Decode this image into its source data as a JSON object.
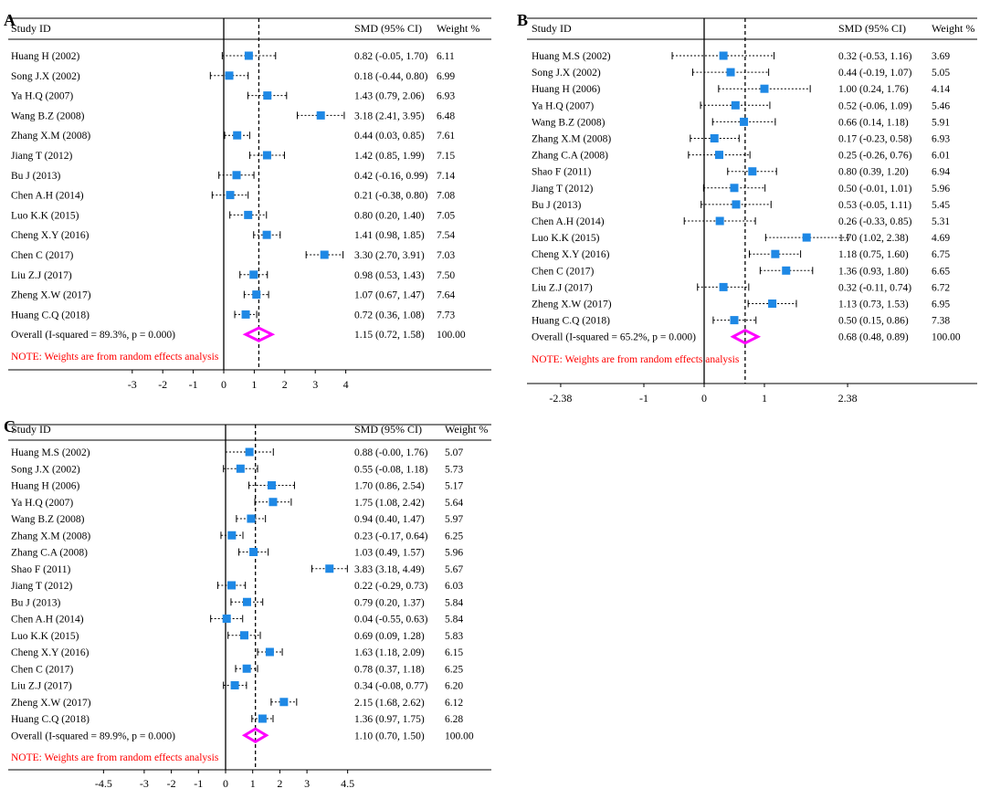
{
  "header": {
    "study": "Study ID",
    "smd": "SMD (95% CI)",
    "weight": "Weight %"
  },
  "colors": {
    "square": "#1E88E5",
    "diamond": "#FF00FF",
    "note": "#FF0000",
    "ink": "#000000"
  },
  "chart_data": [
    {
      "type": "forest",
      "panel": "A",
      "studies": [
        "Huang H (2002)",
        "Song J.X (2002)",
        "Ya H.Q (2007)",
        "Wang B.Z (2008)",
        "Zhang X.M (2008)",
        "Jiang T (2012)",
        "Bu J (2013)",
        "Chen A.H (2014)",
        "Luo K.K (2015)",
        "Cheng X.Y (2016)",
        "Chen C (2017)",
        "Liu Z.J (2017)",
        "Zheng X.W (2017)",
        "Huang C.Q (2018)"
      ],
      "smd": [
        0.82,
        0.18,
        1.43,
        3.18,
        0.44,
        1.42,
        0.42,
        0.21,
        0.8,
        1.41,
        3.3,
        0.98,
        1.07,
        0.72
      ],
      "lower": [
        -0.05,
        -0.44,
        0.79,
        2.41,
        0.03,
        0.85,
        -0.16,
        -0.38,
        0.2,
        0.98,
        2.7,
        0.53,
        0.67,
        0.36
      ],
      "upper": [
        1.7,
        0.8,
        2.06,
        3.95,
        0.85,
        1.99,
        0.99,
        0.8,
        1.4,
        1.85,
        3.91,
        1.43,
        1.47,
        1.08
      ],
      "ci_text": [
        "0.82 (-0.05, 1.70)",
        "0.18 (-0.44, 0.80)",
        "1.43 (0.79, 2.06)",
        "3.18 (2.41, 3.95)",
        "0.44 (0.03, 0.85)",
        "1.42 (0.85, 1.99)",
        "0.42 (-0.16, 0.99)",
        "0.21 (-0.38, 0.80)",
        "0.80 (0.20, 1.40)",
        "1.41 (0.98, 1.85)",
        "3.30 (2.70, 3.91)",
        "0.98 (0.53, 1.43)",
        "1.07 (0.67, 1.47)",
        "0.72 (0.36, 1.08)"
      ],
      "weights": [
        "6.11",
        "6.99",
        "6.93",
        "6.48",
        "7.61",
        "7.15",
        "7.14",
        "7.08",
        "7.05",
        "7.54",
        "7.03",
        "7.50",
        "7.64",
        "7.73"
      ],
      "overall": {
        "label": "Overall  (I-squared = 89.3%, p = 0.000)",
        "smd": 1.15,
        "lower": 0.72,
        "upper": 1.58,
        "ci_text": "1.15 (0.72, 1.58)",
        "weight": "100.00"
      },
      "note": "NOTE: Weights are from random effects analysis",
      "xticks": [
        -3,
        -2,
        -1,
        0,
        1,
        2,
        3,
        4
      ],
      "xtick_labels": [
        "-3",
        "-2",
        "-1",
        "0",
        "1",
        "2",
        "3",
        "4"
      ],
      "xlim": [
        -3,
        4
      ]
    },
    {
      "type": "forest",
      "panel": "B",
      "studies": [
        "Huang M.S (2002)",
        "Song J.X (2002)",
        "Huang H (2006)",
        "Ya H.Q (2007)",
        "Wang B.Z (2008)",
        "Zhang X.M (2008)",
        "Zhang C.A (2008)",
        "Shao F (2011)",
        "Jiang T (2012)",
        "Bu J (2013)",
        "Chen A.H (2014)",
        "Luo K.K (2015)",
        "Cheng X.Y (2016)",
        "Chen C (2017)",
        "Liu Z.J (2017)",
        "Zheng X.W (2017)",
        "Huang C.Q (2018)"
      ],
      "smd": [
        0.32,
        0.44,
        1.0,
        0.52,
        0.66,
        0.17,
        0.25,
        0.8,
        0.5,
        0.53,
        0.26,
        1.7,
        1.18,
        1.36,
        0.32,
        1.13,
        0.5
      ],
      "lower": [
        -0.53,
        -0.19,
        0.24,
        -0.06,
        0.14,
        -0.23,
        -0.26,
        0.39,
        -0.01,
        -0.05,
        -0.33,
        1.02,
        0.75,
        0.93,
        -0.11,
        0.73,
        0.15
      ],
      "upper": [
        1.16,
        1.07,
        1.76,
        1.09,
        1.18,
        0.58,
        0.76,
        1.2,
        1.01,
        1.11,
        0.85,
        2.38,
        1.6,
        1.8,
        0.74,
        1.53,
        0.86
      ],
      "ci_text": [
        "0.32 (-0.53, 1.16)",
        "0.44 (-0.19, 1.07)",
        "1.00 (0.24, 1.76)",
        "0.52 (-0.06, 1.09)",
        "0.66 (0.14, 1.18)",
        "0.17 (-0.23, 0.58)",
        "0.25 (-0.26, 0.76)",
        "0.80 (0.39, 1.20)",
        "0.50 (-0.01, 1.01)",
        "0.53 (-0.05, 1.11)",
        "0.26 (-0.33, 0.85)",
        "1.70 (1.02, 2.38)",
        "1.18 (0.75, 1.60)",
        "1.36 (0.93, 1.80)",
        "0.32 (-0.11, 0.74)",
        "1.13 (0.73, 1.53)",
        "0.50 (0.15, 0.86)"
      ],
      "weights": [
        "3.69",
        "5.05",
        "4.14",
        "5.46",
        "5.91",
        "6.93",
        "6.01",
        "6.94",
        "5.96",
        "5.45",
        "5.31",
        "4.69",
        "6.75",
        "6.65",
        "6.72",
        "6.95",
        "7.38"
      ],
      "overall": {
        "label": "Overall  (I-squared = 65.2%, p = 0.000)",
        "smd": 0.68,
        "lower": 0.48,
        "upper": 0.89,
        "ci_text": "0.68 (0.48, 0.89)",
        "weight": "100.00"
      },
      "note": "NOTE: Weights are from random effects analysis",
      "xticks": [
        -2.38,
        -1,
        0,
        1,
        2.38
      ],
      "xtick_labels": [
        "-2.38",
        "-1",
        "0",
        "1",
        "2.38"
      ],
      "xlim": [
        -2.38,
        2.38
      ]
    },
    {
      "type": "forest",
      "panel": "C",
      "studies": [
        "Huang M.S (2002)",
        "Song J.X (2002)",
        "Huang H (2006)",
        "Ya H.Q (2007)",
        "Wang B.Z (2008)",
        "Zhang X.M (2008)",
        "Zhang C.A (2008)",
        "Shao F (2011)",
        "Jiang T (2012)",
        "Bu J (2013)",
        "Chen A.H (2014)",
        "Luo K.K (2015)",
        "Cheng X.Y (2016)",
        "Chen C (2017)",
        "Liu Z.J (2017)",
        "Zheng X.W (2017)",
        "Huang C.Q (2018)"
      ],
      "smd": [
        0.88,
        0.55,
        1.7,
        1.75,
        0.94,
        0.23,
        1.03,
        3.83,
        0.22,
        0.79,
        0.04,
        0.69,
        1.63,
        0.78,
        0.34,
        2.15,
        1.36
      ],
      "lower": [
        -0.0,
        -0.08,
        0.86,
        1.08,
        0.4,
        -0.17,
        0.49,
        3.18,
        -0.29,
        0.2,
        -0.55,
        0.09,
        1.18,
        0.37,
        -0.08,
        1.68,
        0.97
      ],
      "upper": [
        1.76,
        1.18,
        2.54,
        2.42,
        1.47,
        0.64,
        1.57,
        4.49,
        0.73,
        1.37,
        0.63,
        1.28,
        2.09,
        1.18,
        0.77,
        2.62,
        1.75
      ],
      "ci_text": [
        "0.88 (-0.00, 1.76)",
        "0.55 (-0.08, 1.18)",
        "1.70 (0.86, 2.54)",
        "1.75 (1.08, 2.42)",
        "0.94 (0.40, 1.47)",
        "0.23 (-0.17, 0.64)",
        "1.03 (0.49, 1.57)",
        "3.83 (3.18, 4.49)",
        "0.22 (-0.29, 0.73)",
        "0.79 (0.20, 1.37)",
        "0.04 (-0.55, 0.63)",
        "0.69 (0.09, 1.28)",
        "1.63 (1.18, 2.09)",
        "0.78 (0.37, 1.18)",
        "0.34 (-0.08, 0.77)",
        "2.15 (1.68, 2.62)",
        "1.36 (0.97, 1.75)"
      ],
      "weights": [
        "5.07",
        "5.73",
        "5.17",
        "5.64",
        "5.97",
        "6.25",
        "5.96",
        "5.67",
        "6.03",
        "5.84",
        "5.84",
        "5.83",
        "6.15",
        "6.25",
        "6.20",
        "6.12",
        "6.28"
      ],
      "overall": {
        "label": "Overall  (I-squared = 89.9%, p = 0.000)",
        "smd": 1.1,
        "lower": 0.7,
        "upper": 1.5,
        "ci_text": "1.10 (0.70, 1.50)",
        "weight": "100.00"
      },
      "note": "NOTE: Weights are from random effects analysis",
      "xticks": [
        -4.5,
        -3,
        -2,
        -1,
        0,
        1,
        2,
        3,
        4.5
      ],
      "xtick_labels": [
        "-4.5",
        "-3",
        "-2",
        "-1",
        "0",
        "1",
        "2",
        "3",
        "4.5"
      ],
      "xlim": [
        -4.5,
        4.5
      ]
    }
  ]
}
